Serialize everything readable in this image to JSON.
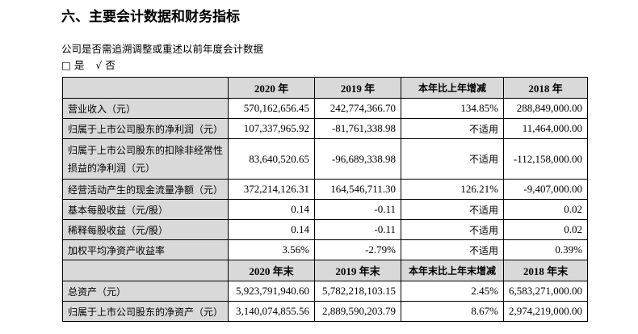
{
  "title": "六、主要会计数据和财务指标",
  "question": "公司是否需追溯调整或重述以前年度会计数据",
  "options": {
    "box_unchecked": "□",
    "yes": "是",
    "check": "√",
    "no": "否"
  },
  "table1": {
    "headers": [
      "",
      "2020 年",
      "2019 年",
      "本年比上年增减",
      "2018 年"
    ],
    "rows": [
      [
        "营业收入（元）",
        "570,162,656.45",
        "242,774,366.70",
        "134.85%",
        "288,849,000.00"
      ],
      [
        "归属于上市公司股东的净利润（元）",
        "107,337,965.92",
        "-81,761,338.98",
        "不适用",
        "11,464,000.00"
      ],
      [
        "归属于上市公司股东的扣除非经常性损益的净利润（元）",
        "83,640,520.65",
        "-96,689,338.98",
        "不适用",
        "-112,158,000.00"
      ],
      [
        "经营活动产生的现金流量净额（元）",
        "372,214,126.31",
        "164,546,711.30",
        "126.21%",
        "-9,407,000.00"
      ],
      [
        "基本每股收益（元/股）",
        "0.14",
        "-0.11",
        "不适用",
        "0.02"
      ],
      [
        "稀释每股收益（元/股）",
        "0.14",
        "-0.11",
        "不适用",
        "0.02"
      ],
      [
        "加权平均净资产收益率",
        "3.56%",
        "-2.79%",
        "不适用",
        "0.39%"
      ]
    ]
  },
  "table2": {
    "headers": [
      "",
      "2020 年末",
      "2019 年末",
      "本年末比上年末增减",
      "2018 年末"
    ],
    "rows": [
      [
        "总资产（元）",
        "5,923,791,940.60",
        "5,782,218,103.15",
        "2.45%",
        "6,583,271,000.00"
      ],
      [
        "归属于上市公司股东的净资产（元）",
        "3,140,074,855.56",
        "2,889,590,203.79",
        "8.67%",
        "2,974,219,000.00"
      ]
    ]
  }
}
